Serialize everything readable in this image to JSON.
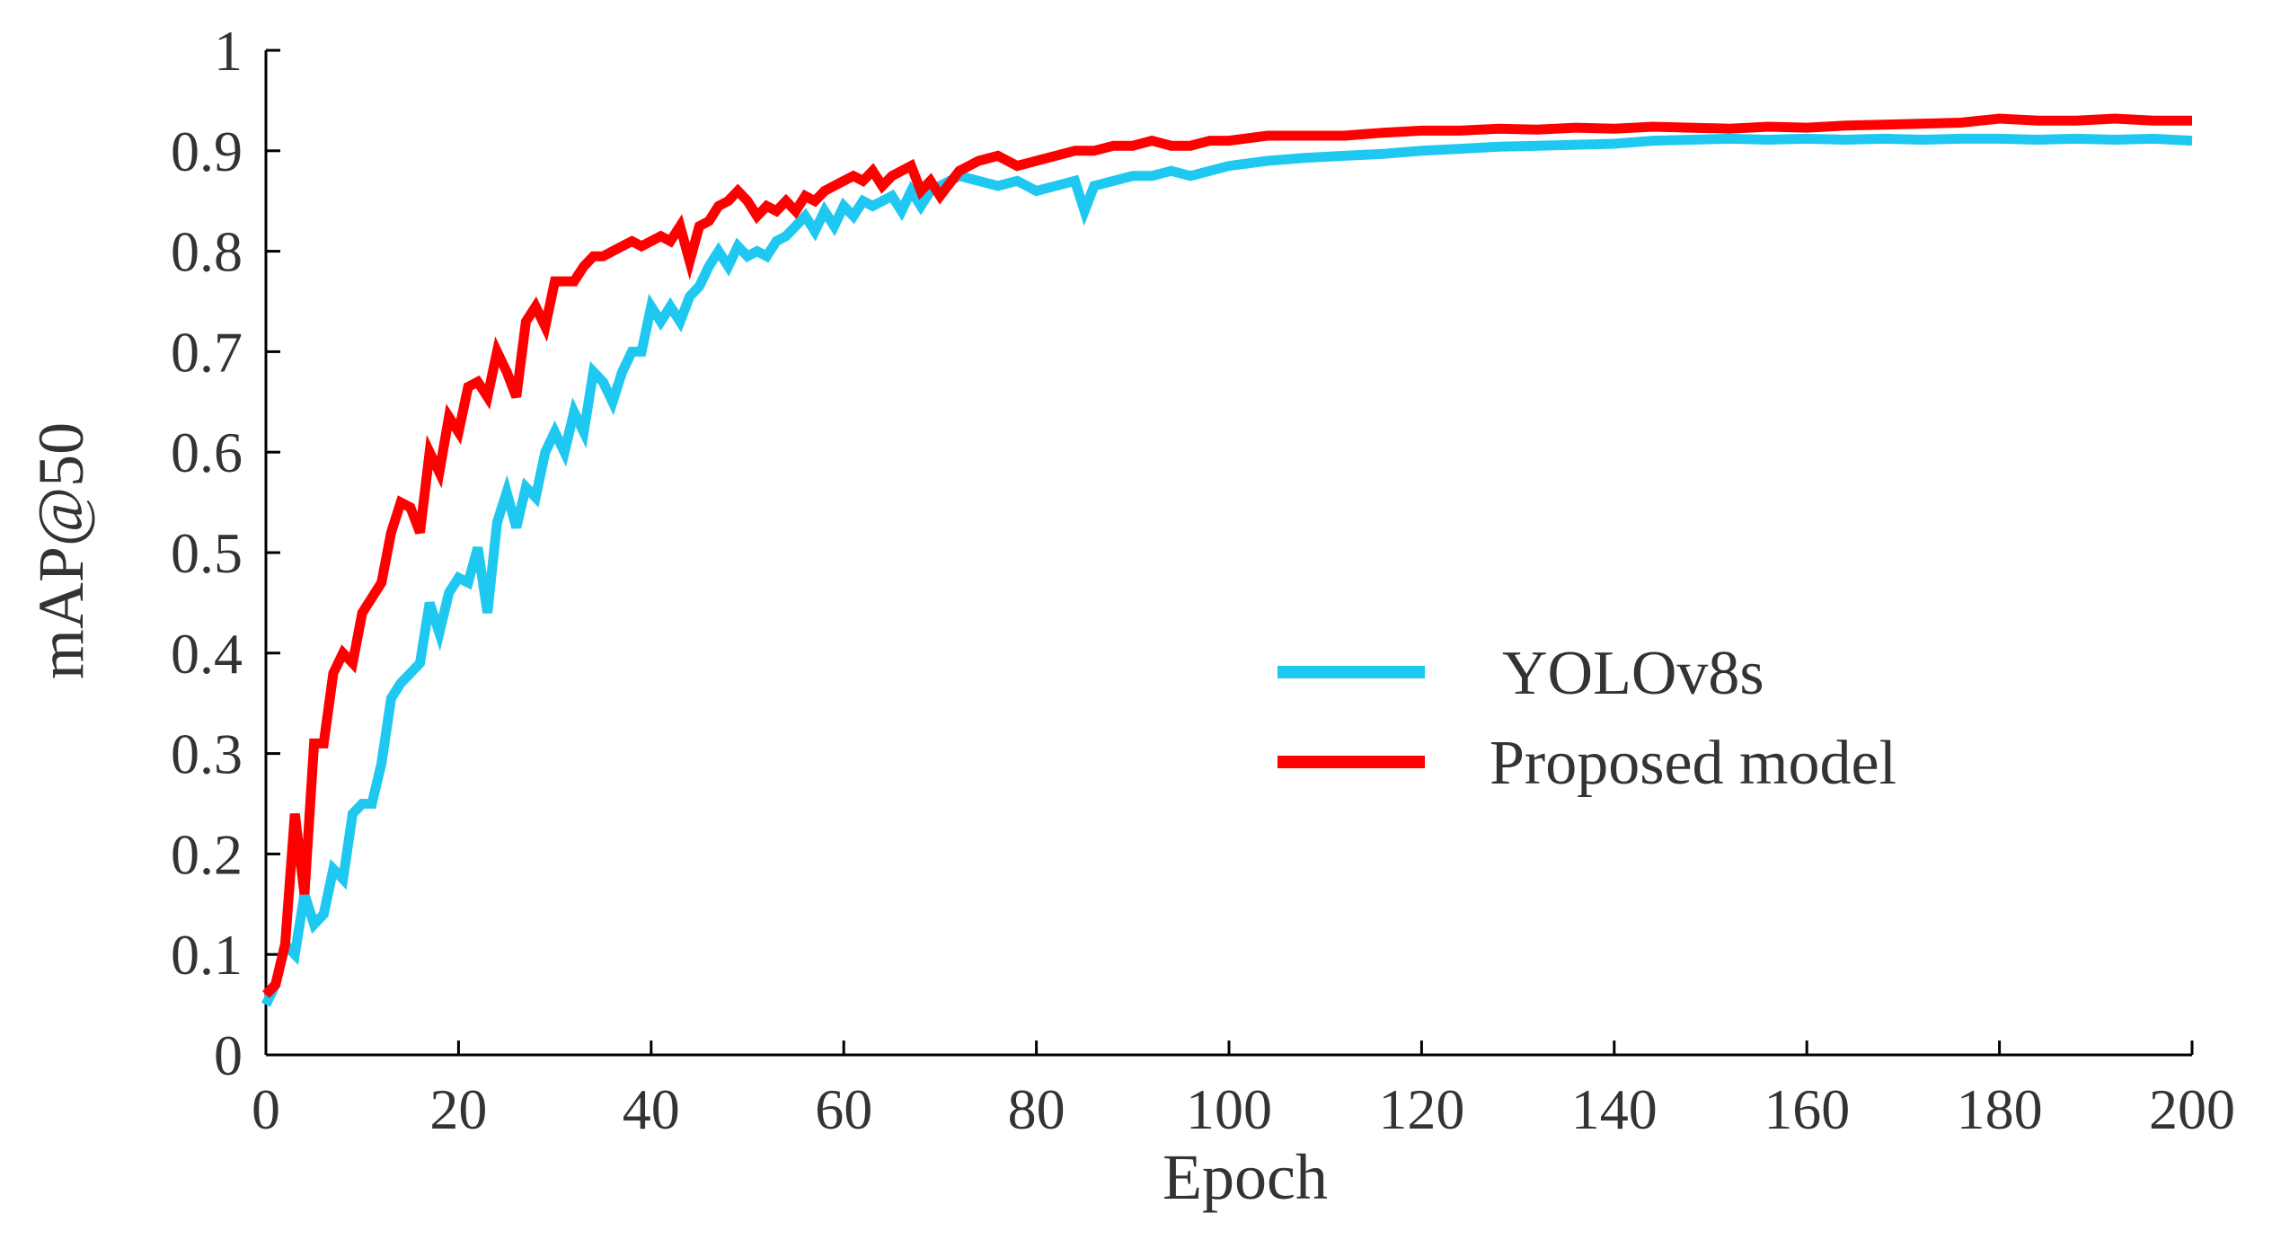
{
  "chart_data": {
    "type": "line",
    "title": "",
    "xlabel": "Epoch",
    "ylabel": "mAP@50",
    "xlim": [
      0,
      200
    ],
    "ylim": [
      0,
      1
    ],
    "xticks": [
      0,
      20,
      40,
      60,
      80,
      100,
      120,
      140,
      160,
      180,
      200
    ],
    "xtick_labels": [
      "0",
      "20",
      "40",
      "60",
      "80",
      "100",
      "120",
      "140",
      "160",
      "180",
      "200"
    ],
    "yticks": [
      0,
      0.1,
      0.2,
      0.3,
      0.4,
      0.5,
      0.6,
      0.7,
      0.8,
      0.9,
      1
    ],
    "ytick_labels": [
      "0",
      "0.1",
      "0.2",
      "0.3",
      "0.4",
      "0.5",
      "0.6",
      "0.7",
      "0.8",
      "0.9",
      "1"
    ],
    "grid": false,
    "legend_position": "center-right",
    "series": [
      {
        "name": "YOLOv8s",
        "color": "#1ec8f0",
        "x": [
          0,
          1,
          2,
          3,
          4,
          5,
          6,
          7,
          8,
          9,
          10,
          11,
          12,
          13,
          14,
          15,
          16,
          17,
          18,
          19,
          20,
          21,
          22,
          23,
          24,
          25,
          26,
          27,
          28,
          29,
          30,
          31,
          32,
          33,
          34,
          35,
          36,
          37,
          38,
          39,
          40,
          41,
          42,
          43,
          44,
          45,
          46,
          47,
          48,
          49,
          50,
          51,
          52,
          53,
          54,
          55,
          56,
          57,
          58,
          59,
          60,
          61,
          62,
          63,
          64,
          65,
          66,
          67,
          68,
          69,
          70,
          72,
          74,
          76,
          78,
          80,
          82,
          84,
          85,
          86,
          88,
          90,
          92,
          94,
          96,
          98,
          100,
          104,
          108,
          112,
          116,
          120,
          124,
          128,
          132,
          136,
          140,
          144,
          148,
          152,
          156,
          160,
          164,
          168,
          172,
          176,
          180,
          184,
          188,
          192,
          196,
          200
        ],
        "values": [
          0.05,
          0.07,
          0.11,
          0.1,
          0.16,
          0.13,
          0.14,
          0.185,
          0.175,
          0.24,
          0.25,
          0.25,
          0.29,
          0.355,
          0.37,
          0.38,
          0.39,
          0.45,
          0.42,
          0.46,
          0.475,
          0.47,
          0.505,
          0.44,
          0.53,
          0.56,
          0.525,
          0.565,
          0.555,
          0.6,
          0.62,
          0.6,
          0.64,
          0.62,
          0.68,
          0.67,
          0.65,
          0.68,
          0.7,
          0.7,
          0.745,
          0.73,
          0.745,
          0.73,
          0.755,
          0.765,
          0.785,
          0.8,
          0.785,
          0.805,
          0.795,
          0.8,
          0.795,
          0.81,
          0.815,
          0.825,
          0.835,
          0.82,
          0.84,
          0.825,
          0.845,
          0.835,
          0.85,
          0.845,
          0.85,
          0.855,
          0.84,
          0.86,
          0.845,
          0.86,
          0.865,
          0.875,
          0.87,
          0.865,
          0.87,
          0.86,
          0.865,
          0.87,
          0.84,
          0.865,
          0.87,
          0.875,
          0.875,
          0.88,
          0.875,
          0.88,
          0.885,
          0.89,
          0.893,
          0.895,
          0.897,
          0.9,
          0.902,
          0.904,
          0.905,
          0.906,
          0.907,
          0.91,
          0.911,
          0.912,
          0.911,
          0.912,
          0.911,
          0.912,
          0.911,
          0.912,
          0.912,
          0.911,
          0.912,
          0.911,
          0.912,
          0.91
        ]
      },
      {
        "name": "Proposed model",
        "color": "#ff0000",
        "x": [
          0,
          1,
          2,
          3,
          4,
          5,
          6,
          7,
          8,
          9,
          10,
          11,
          12,
          13,
          14,
          15,
          16,
          17,
          18,
          19,
          20,
          21,
          22,
          23,
          24,
          25,
          26,
          27,
          28,
          29,
          30,
          31,
          32,
          33,
          34,
          35,
          36,
          37,
          38,
          39,
          40,
          41,
          42,
          43,
          44,
          45,
          46,
          47,
          48,
          49,
          50,
          51,
          52,
          53,
          54,
          55,
          56,
          57,
          58,
          59,
          60,
          61,
          62,
          63,
          64,
          65,
          66,
          67,
          68,
          69,
          70,
          72,
          74,
          76,
          78,
          80,
          82,
          84,
          86,
          88,
          90,
          92,
          94,
          96,
          98,
          100,
          104,
          108,
          112,
          116,
          120,
          124,
          128,
          132,
          136,
          140,
          144,
          148,
          152,
          156,
          160,
          164,
          168,
          172,
          176,
          180,
          184,
          188,
          192,
          196,
          200
        ],
        "values": [
          0.06,
          0.07,
          0.11,
          0.24,
          0.16,
          0.31,
          0.31,
          0.38,
          0.4,
          0.39,
          0.44,
          0.455,
          0.47,
          0.52,
          0.55,
          0.545,
          0.52,
          0.6,
          0.58,
          0.635,
          0.62,
          0.665,
          0.67,
          0.655,
          0.7,
          0.68,
          0.655,
          0.73,
          0.745,
          0.725,
          0.77,
          0.77,
          0.77,
          0.785,
          0.795,
          0.795,
          0.8,
          0.805,
          0.81,
          0.805,
          0.81,
          0.815,
          0.81,
          0.825,
          0.79,
          0.825,
          0.83,
          0.845,
          0.85,
          0.86,
          0.85,
          0.835,
          0.845,
          0.84,
          0.85,
          0.84,
          0.855,
          0.85,
          0.86,
          0.865,
          0.87,
          0.875,
          0.87,
          0.88,
          0.865,
          0.875,
          0.88,
          0.885,
          0.86,
          0.87,
          0.855,
          0.88,
          0.89,
          0.895,
          0.885,
          0.89,
          0.895,
          0.9,
          0.9,
          0.905,
          0.905,
          0.91,
          0.905,
          0.905,
          0.91,
          0.91,
          0.915,
          0.915,
          0.915,
          0.918,
          0.92,
          0.92,
          0.922,
          0.921,
          0.923,
          0.922,
          0.924,
          0.923,
          0.922,
          0.924,
          0.923,
          0.925,
          0.926,
          0.927,
          0.928,
          0.932,
          0.93,
          0.93,
          0.932,
          0.93,
          0.93
        ]
      }
    ]
  }
}
